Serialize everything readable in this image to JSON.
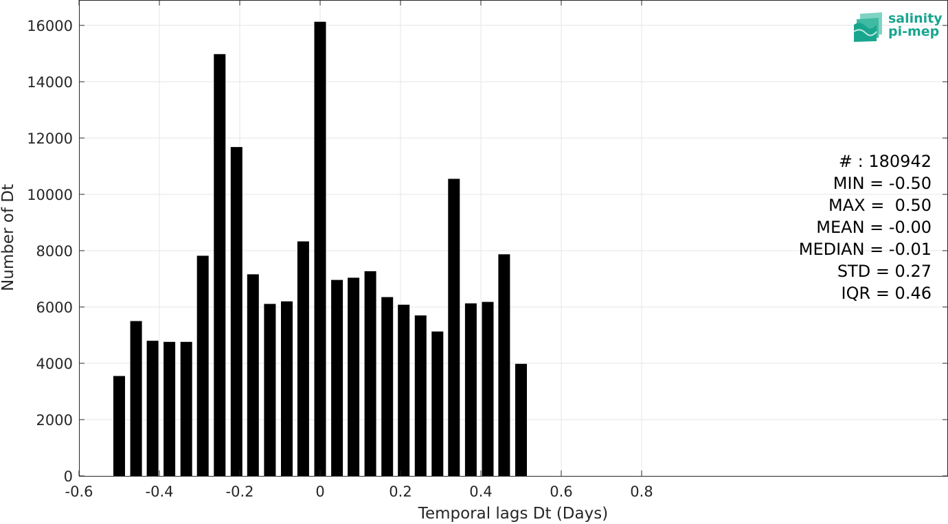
{
  "chart_data": {
    "type": "bar",
    "xlabel": "Temporal lags Dt (Days)",
    "ylabel": "Number of Dt",
    "xlim": [
      -0.6,
      0.85
    ],
    "ylim": [
      0,
      16500
    ],
    "x_ticks": [
      -0.6,
      -0.4,
      -0.2,
      0,
      0.2,
      0.4,
      0.6,
      0.8
    ],
    "x_tick_labels": [
      "-0.6",
      "-0.4",
      "-0.2",
      "0",
      "0.2",
      "0.4",
      "0.6",
      "0.8"
    ],
    "y_ticks": [
      0,
      2000,
      4000,
      6000,
      8000,
      10000,
      12000,
      14000,
      16000
    ],
    "y_tick_labels": [
      "0",
      "2000",
      "4000",
      "6000",
      "8000",
      "10000",
      "12000",
      "14000",
      "16000"
    ],
    "grid": true,
    "bar_width_days": 0.029,
    "bar_color": "#000000",
    "x": [
      -0.5,
      -0.458,
      -0.417,
      -0.375,
      -0.333,
      -0.292,
      -0.25,
      -0.208,
      -0.167,
      -0.125,
      -0.083,
      -0.042,
      0,
      0.042,
      0.083,
      0.125,
      0.167,
      0.208,
      0.25,
      0.292,
      0.333,
      0.375,
      0.417,
      0.458,
      0.5
    ],
    "values": [
      3550,
      5500,
      4800,
      4760,
      4760,
      7820,
      14980,
      11680,
      7160,
      6110,
      6200,
      8330,
      16130,
      6960,
      7040,
      7270,
      6350,
      6080,
      5700,
      5130,
      10550,
      6130,
      6180,
      7870,
      3980
    ]
  },
  "stats": {
    "lines": [
      "# : 180942",
      "MIN = -0.50",
      "MAX =  0.50",
      "MEAN = -0.00",
      "MEDIAN = -0.01",
      "STD = 0.27",
      "IQR = 0.46"
    ]
  },
  "logo": {
    "line1": "salinity",
    "line2": "pi-mep",
    "color": "#1aa58e"
  }
}
